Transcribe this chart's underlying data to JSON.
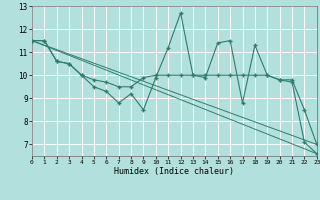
{
  "bg_color": "#b2e0dc",
  "grid_color": "#ffffff",
  "line_color": "#2e7d6e",
  "marker": "+",
  "xlabel": "Humidex (Indice chaleur)",
  "xlim": [
    0,
    23
  ],
  "ylim": [
    6.5,
    13
  ],
  "yticks": [
    7,
    8,
    9,
    10,
    11,
    12,
    13
  ],
  "xticks": [
    0,
    1,
    2,
    3,
    4,
    5,
    6,
    7,
    8,
    9,
    10,
    11,
    12,
    13,
    14,
    15,
    16,
    17,
    18,
    19,
    20,
    21,
    22,
    23
  ],
  "series1_x": [
    0,
    1,
    2,
    3,
    4,
    5,
    6,
    7,
    8,
    9,
    10,
    11,
    12,
    13,
    14,
    15,
    16,
    17,
    18,
    19,
    20,
    21,
    22,
    23
  ],
  "series1_y": [
    11.5,
    11.5,
    10.6,
    10.5,
    10.0,
    9.5,
    9.3,
    8.8,
    9.2,
    8.5,
    9.9,
    11.2,
    12.7,
    10.0,
    9.9,
    11.4,
    11.5,
    8.8,
    11.3,
    10.0,
    9.8,
    9.7,
    7.1,
    6.6
  ],
  "series2_x": [
    0,
    1,
    2,
    3,
    4,
    5,
    6,
    7,
    8,
    9,
    10,
    11,
    12,
    13,
    14,
    15,
    16,
    17,
    18,
    19,
    20,
    21,
    22,
    23
  ],
  "series2_y": [
    11.5,
    11.5,
    10.6,
    10.5,
    10.0,
    9.8,
    9.7,
    9.5,
    9.5,
    9.9,
    10.0,
    10.0,
    10.0,
    10.0,
    10.0,
    10.0,
    10.0,
    10.0,
    10.0,
    10.0,
    9.8,
    9.8,
    8.5,
    7.0
  ],
  "series3_x": [
    0,
    23
  ],
  "series3_y": [
    11.5,
    6.6
  ],
  "series4_x": [
    0,
    23
  ],
  "series4_y": [
    11.5,
    7.0
  ]
}
